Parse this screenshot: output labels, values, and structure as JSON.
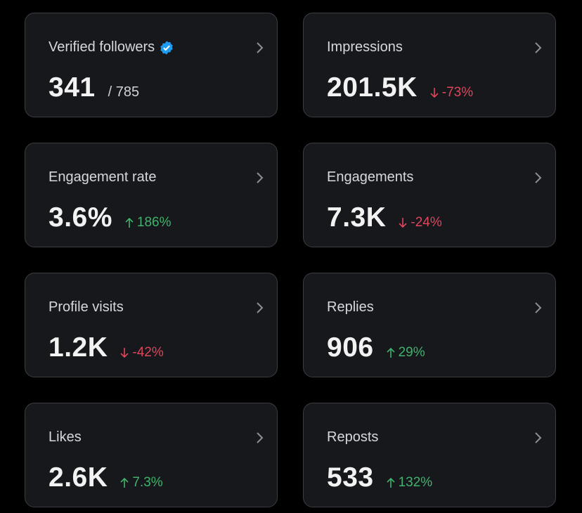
{
  "cards": [
    {
      "label": "Verified followers",
      "value": "341",
      "secondary": "/ 785"
    },
    {
      "label": "Impressions",
      "value": "201.5K",
      "change": "-73%"
    },
    {
      "label": "Engagement rate",
      "value": "3.6%",
      "change": "186%"
    },
    {
      "label": "Engagements",
      "value": "7.3K",
      "change": "-24%"
    },
    {
      "label": "Profile visits",
      "value": "1.2K",
      "change": "-42%"
    },
    {
      "label": "Replies",
      "value": "906",
      "change": "29%"
    },
    {
      "label": "Likes",
      "value": "2.6K",
      "change": "7.3%"
    },
    {
      "label": "Reposts",
      "value": "533",
      "change": "132%"
    }
  ]
}
